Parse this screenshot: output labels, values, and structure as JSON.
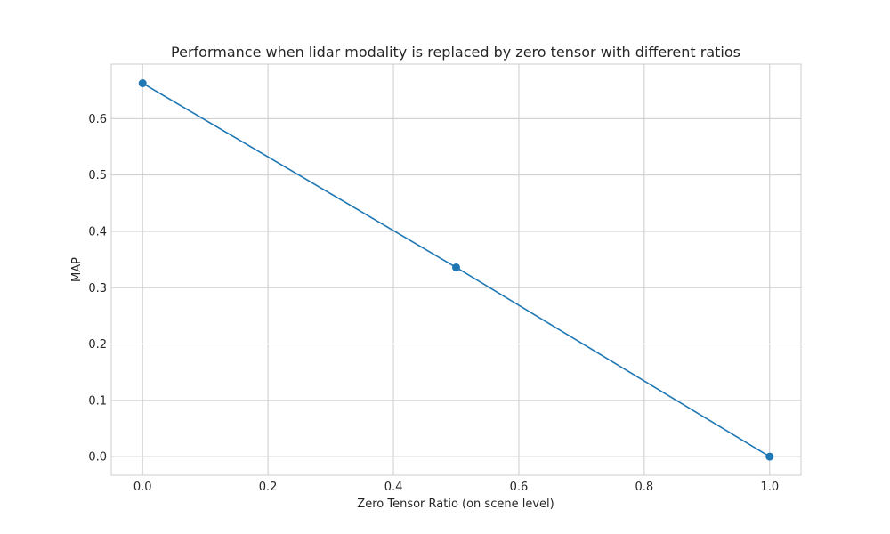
{
  "chart_data": {
    "type": "line",
    "title": "Performance when lidar modality is replaced by zero tensor with different ratios",
    "xlabel": "Zero Tensor Ratio (on scene level)",
    "ylabel": "MAP",
    "xlim": [
      -0.05,
      1.05
    ],
    "ylim": [
      -0.033,
      0.697
    ],
    "xticks": [
      0.0,
      0.2,
      0.4,
      0.6,
      0.8,
      1.0
    ],
    "xtick_labels": [
      "0.0",
      "0.2",
      "0.4",
      "0.6",
      "0.8",
      "1.0"
    ],
    "yticks": [
      0.0,
      0.1,
      0.2,
      0.3,
      0.4,
      0.5,
      0.6
    ],
    "ytick_labels": [
      "0.0",
      "0.1",
      "0.2",
      "0.3",
      "0.4",
      "0.5",
      "0.6"
    ],
    "grid": true,
    "series": [
      {
        "x": [
          0.0,
          0.5,
          1.0
        ],
        "y": [
          0.663,
          0.336,
          0.0
        ],
        "color": "#1f77b4",
        "marker": "circle"
      }
    ]
  }
}
